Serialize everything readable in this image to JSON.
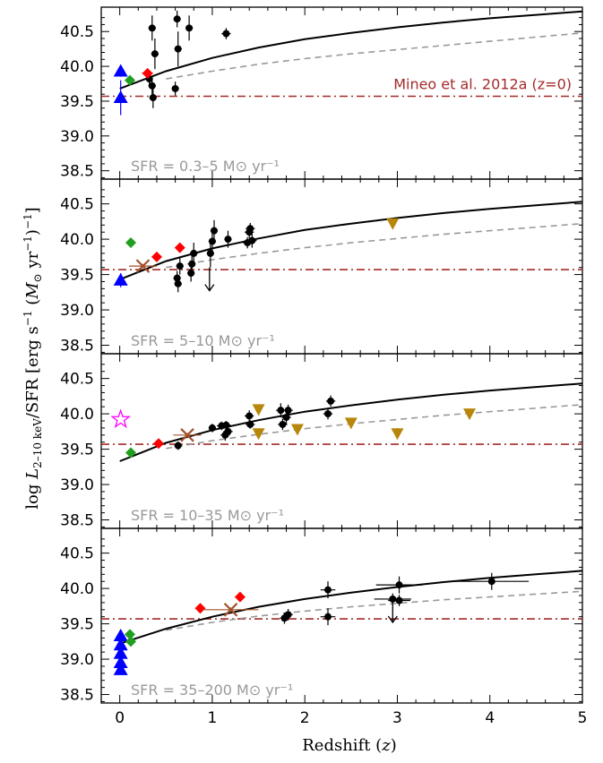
{
  "chart_data": {
    "type": "scatter",
    "xlabel": "Redshift (z)",
    "ylabel": "log L2–10 keV/SFR [erg s⁻¹ (M⊙ yr⁻¹)⁻¹]",
    "xlim": [
      -0.2,
      5
    ],
    "ylim": [
      38.38,
      40.85
    ],
    "x_ticks": [
      "0",
      "1",
      "2",
      "3",
      "4",
      "5"
    ],
    "y_ticks": [
      "38.5",
      "39.0",
      "39.5",
      "40.0",
      "40.5"
    ],
    "reference_label": "Mineo et al. 2012a (z=0)",
    "reference_value": 39.57,
    "colors": {
      "reference": "#a52a2a",
      "model_solid": "#000000",
      "model_dashed": "#999999",
      "local_triangle": "#0000ff",
      "diamond_green": "#1f9e1f",
      "diamond_red": "#ff0000",
      "stack_x": "#a0522d",
      "gold_triangle": "#b8860b",
      "star": "#ff00ff",
      "panel_label": "#999999"
    },
    "panels": [
      {
        "label": "SFR = 0.3–5 M⊙ yr⁻¹",
        "solid_curve": [
          [
            0,
            39.68
          ],
          [
            0.5,
            39.93
          ],
          [
            1,
            40.12
          ],
          [
            1.5,
            40.27
          ],
          [
            2,
            40.39
          ],
          [
            2.5,
            40.48
          ],
          [
            3,
            40.56
          ],
          [
            3.5,
            40.63
          ],
          [
            4,
            40.69
          ],
          [
            4.5,
            40.74
          ],
          [
            5,
            40.79
          ]
        ],
        "dashed_curve": [
          [
            0.5,
            39.82
          ],
          [
            1,
            39.93
          ],
          [
            1.5,
            40.03
          ],
          [
            2,
            40.11
          ],
          [
            2.5,
            40.18
          ],
          [
            3,
            40.24
          ],
          [
            3.5,
            40.3
          ],
          [
            4,
            40.36
          ],
          [
            4.5,
            40.42
          ],
          [
            5,
            40.48
          ]
        ],
        "points": [
          {
            "kind": "circle",
            "x": 0.35,
            "y": 40.55,
            "xerr": 0.04,
            "yerr": 0.18
          },
          {
            "kind": "circle",
            "x": 0.38,
            "y": 40.18,
            "xerr": 0.04,
            "yerr": 0.22
          },
          {
            "kind": "circle",
            "x": 0.35,
            "y": 39.72,
            "xerr": 0.04,
            "yerr": 0.12
          },
          {
            "kind": "circle",
            "x": 0.36,
            "y": 39.55,
            "xerr": 0.04,
            "yerr": 0.15
          },
          {
            "kind": "circle",
            "x": 0.32,
            "y": 39.82,
            "xerr": 0.03,
            "yerr": 0.12
          },
          {
            "kind": "circle",
            "x": 0.62,
            "y": 40.68,
            "xerr": 0.04,
            "yerr": 0.12
          },
          {
            "kind": "circle",
            "x": 0.63,
            "y": 40.25,
            "xerr": 0.04,
            "yerr": 0.25
          },
          {
            "kind": "circle",
            "x": 0.6,
            "y": 39.68,
            "xerr": 0.04,
            "yerr": 0.1
          },
          {
            "kind": "circle",
            "x": 0.75,
            "y": 40.55,
            "xerr": 0.04,
            "yerr": 0.18
          },
          {
            "kind": "circle",
            "x": 1.15,
            "y": 40.47,
            "xerr": 0.05,
            "yerr": 0.08
          },
          {
            "kind": "triangle-up",
            "x": 0.01,
            "y": 39.93,
            "xerr": 0,
            "yerr": 0.08
          },
          {
            "kind": "triangle-up",
            "x": 0.01,
            "y": 39.55,
            "xerr": 0,
            "yerr": 0.25
          },
          {
            "kind": "diamond-green",
            "x": 0.11,
            "y": 39.8,
            "xerr": 0,
            "yerr": 0
          },
          {
            "kind": "diamond-red",
            "x": 0.3,
            "y": 39.9,
            "xerr": 0.06,
            "yerr": 0.05
          }
        ]
      },
      {
        "label": "SFR = 5–10 M⊙ yr⁻¹",
        "solid_curve": [
          [
            0,
            39.43
          ],
          [
            0.5,
            39.69
          ],
          [
            1,
            39.87
          ],
          [
            1.5,
            40.01
          ],
          [
            2,
            40.13
          ],
          [
            2.5,
            40.22
          ],
          [
            3,
            40.3
          ],
          [
            3.5,
            40.37
          ],
          [
            4,
            40.43
          ],
          [
            4.5,
            40.48
          ],
          [
            5,
            40.53
          ]
        ],
        "dashed_curve": [
          [
            0.5,
            39.6
          ],
          [
            1,
            39.71
          ],
          [
            1.5,
            39.8
          ],
          [
            2,
            39.88
          ],
          [
            2.5,
            39.95
          ],
          [
            3,
            40.01
          ],
          [
            3.5,
            40.07
          ],
          [
            4,
            40.12
          ],
          [
            4.5,
            40.17
          ],
          [
            5,
            40.22
          ]
        ],
        "points": [
          {
            "kind": "circle",
            "x": 0.62,
            "y": 39.45,
            "xerr": 0.04,
            "yerr": 0.1
          },
          {
            "kind": "circle",
            "x": 0.63,
            "y": 39.37,
            "xerr": 0.04,
            "yerr": 0.12
          },
          {
            "kind": "circle",
            "x": 0.65,
            "y": 39.62,
            "xerr": 0.04,
            "yerr": 0.12
          },
          {
            "kind": "circle",
            "x": 0.77,
            "y": 39.52,
            "xerr": 0.04,
            "yerr": 0.12
          },
          {
            "kind": "circle",
            "x": 0.78,
            "y": 39.65,
            "xerr": 0.04,
            "yerr": 0.12
          },
          {
            "kind": "circle",
            "x": 0.8,
            "y": 39.8,
            "xerr": 0.04,
            "yerr": 0.15
          },
          {
            "kind": "circle",
            "x": 0.98,
            "y": 39.8,
            "xerr": 0.04,
            "yerr": 0.2
          },
          {
            "kind": "circle",
            "x": 1.0,
            "y": 39.97,
            "xerr": 0.04,
            "yerr": 0.18
          },
          {
            "kind": "circle",
            "x": 1.02,
            "y": 40.12,
            "xerr": 0.04,
            "yerr": 0.15
          },
          {
            "kind": "circle",
            "x": 1.17,
            "y": 40.0,
            "xerr": 0.04,
            "yerr": 0.12
          },
          {
            "kind": "circle",
            "x": 1.38,
            "y": 39.95,
            "xerr": 0.05,
            "yerr": 0.08
          },
          {
            "kind": "circle",
            "x": 1.4,
            "y": 40.1,
            "xerr": 0.05,
            "yerr": 0.1
          },
          {
            "kind": "circle",
            "x": 1.41,
            "y": 40.15,
            "xerr": 0.05,
            "yerr": 0.08
          },
          {
            "kind": "circle",
            "x": 1.43,
            "y": 39.98,
            "xerr": 0.05,
            "yerr": 0.1
          },
          {
            "kind": "upper-limit",
            "x": 0.97,
            "y": 39.6,
            "xerr": 0,
            "yerr": 0
          },
          {
            "kind": "triangle-up",
            "x": 0.01,
            "y": 39.42,
            "xerr": 0,
            "yerr": 0.1
          },
          {
            "kind": "diamond-green",
            "x": 0.12,
            "y": 39.95,
            "xerr": 0,
            "yerr": 0
          },
          {
            "kind": "diamond-red",
            "x": 0.4,
            "y": 39.75,
            "xerr": 0.05,
            "yerr": 0.05
          },
          {
            "kind": "diamond-red",
            "x": 0.65,
            "y": 39.88,
            "xerr": 0.05,
            "yerr": 0.05
          },
          {
            "kind": "stack-x",
            "x": 0.25,
            "y": 39.62,
            "xerr": 0.15,
            "yerr": 0.03
          },
          {
            "kind": "triangle-down",
            "x": 2.95,
            "y": 40.22,
            "xerr": 0,
            "yerr": 0.07
          }
        ]
      },
      {
        "label": "SFR = 10–35 M⊙ yr⁻¹",
        "solid_curve": [
          [
            0,
            39.33
          ],
          [
            0.5,
            39.59
          ],
          [
            1,
            39.77
          ],
          [
            1.5,
            39.91
          ],
          [
            2,
            40.03
          ],
          [
            2.5,
            40.12
          ],
          [
            3,
            40.2
          ],
          [
            3.5,
            40.27
          ],
          [
            4,
            40.33
          ],
          [
            4.5,
            40.38
          ],
          [
            5,
            40.43
          ]
        ],
        "dashed_curve": [
          [
            0.5,
            39.51
          ],
          [
            1,
            39.62
          ],
          [
            1.5,
            39.71
          ],
          [
            2,
            39.79
          ],
          [
            2.5,
            39.86
          ],
          [
            3,
            39.92
          ],
          [
            3.5,
            39.98
          ],
          [
            4,
            40.03
          ],
          [
            4.5,
            40.08
          ],
          [
            5,
            40.13
          ]
        ],
        "points": [
          {
            "kind": "circle",
            "x": 0.63,
            "y": 39.55,
            "xerr": 0.04,
            "yerr": 0.06
          },
          {
            "kind": "circle",
            "x": 1.0,
            "y": 39.8,
            "xerr": 0.04,
            "yerr": 0.06
          },
          {
            "kind": "circle",
            "x": 1.1,
            "y": 39.83,
            "xerr": 0.05,
            "yerr": 0.06
          },
          {
            "kind": "circle",
            "x": 1.14,
            "y": 39.7,
            "xerr": 0.05,
            "yerr": 0.08
          },
          {
            "kind": "circle",
            "x": 1.15,
            "y": 39.84,
            "xerr": 0.05,
            "yerr": 0.06
          },
          {
            "kind": "circle",
            "x": 1.17,
            "y": 39.75,
            "xerr": 0.05,
            "yerr": 0.07
          },
          {
            "kind": "circle",
            "x": 1.4,
            "y": 39.97,
            "xerr": 0.05,
            "yerr": 0.08
          },
          {
            "kind": "circle",
            "x": 1.41,
            "y": 39.85,
            "xerr": 0.05,
            "yerr": 0.06
          },
          {
            "kind": "circle",
            "x": 1.74,
            "y": 40.05,
            "xerr": 0.05,
            "yerr": 0.1
          },
          {
            "kind": "circle",
            "x": 1.76,
            "y": 39.85,
            "xerr": 0.05,
            "yerr": 0.08
          },
          {
            "kind": "circle",
            "x": 1.8,
            "y": 39.95,
            "xerr": 0.05,
            "yerr": 0.1
          },
          {
            "kind": "circle",
            "x": 1.82,
            "y": 40.05,
            "xerr": 0.05,
            "yerr": 0.08
          },
          {
            "kind": "circle",
            "x": 2.25,
            "y": 40.0,
            "xerr": 0.05,
            "yerr": 0.08
          },
          {
            "kind": "circle",
            "x": 2.28,
            "y": 40.18,
            "xerr": 0.05,
            "yerr": 0.08
          },
          {
            "kind": "star",
            "x": 0.01,
            "y": 39.92,
            "xerr": 0,
            "yerr": 0
          },
          {
            "kind": "diamond-green",
            "x": 0.12,
            "y": 39.45,
            "xerr": 0,
            "yerr": 0
          },
          {
            "kind": "diamond-red",
            "x": 0.42,
            "y": 39.58,
            "xerr": 0.04,
            "yerr": 0.03
          },
          {
            "kind": "stack-x",
            "x": 0.73,
            "y": 39.7,
            "xerr": 0.15,
            "yerr": 0.03
          },
          {
            "kind": "triangle-down",
            "x": 1.5,
            "y": 40.06,
            "xerr": 0,
            "yerr": 0.07
          },
          {
            "kind": "triangle-down",
            "x": 1.5,
            "y": 39.72,
            "xerr": 0,
            "yerr": 0.07
          },
          {
            "kind": "triangle-down",
            "x": 1.92,
            "y": 39.78,
            "xerr": 0,
            "yerr": 0.07
          },
          {
            "kind": "triangle-down",
            "x": 2.5,
            "y": 39.87,
            "xerr": 0,
            "yerr": 0.07
          },
          {
            "kind": "triangle-down",
            "x": 3.0,
            "y": 39.72,
            "xerr": 0,
            "yerr": 0.08
          },
          {
            "kind": "triangle-down",
            "x": 3.78,
            "y": 40.0,
            "xerr": 0,
            "yerr": 0.07
          }
        ]
      },
      {
        "label": "SFR = 35–200 M⊙ yr⁻¹",
        "solid_curve": [
          [
            0,
            39.22
          ],
          [
            0.5,
            39.43
          ],
          [
            1,
            39.6
          ],
          [
            1.5,
            39.74
          ],
          [
            2,
            39.85
          ],
          [
            2.5,
            39.94
          ],
          [
            3,
            40.02
          ],
          [
            3.5,
            40.09
          ],
          [
            4,
            40.15
          ],
          [
            4.5,
            40.2
          ],
          [
            5,
            40.25
          ]
        ],
        "dashed_curve": [
          [
            0.5,
            39.41
          ],
          [
            1,
            39.52
          ],
          [
            1.5,
            39.61
          ],
          [
            2,
            39.68
          ],
          [
            2.5,
            39.74
          ],
          [
            3,
            39.79
          ],
          [
            3.5,
            39.84
          ],
          [
            4,
            39.88
          ],
          [
            4.5,
            39.92
          ],
          [
            5,
            39.96
          ]
        ],
        "points": [
          {
            "kind": "circle",
            "x": 1.78,
            "y": 39.58,
            "xerr": 0.05,
            "yerr": 0.08
          },
          {
            "kind": "circle",
            "x": 1.82,
            "y": 39.63,
            "xerr": 0.05,
            "yerr": 0.08
          },
          {
            "kind": "circle",
            "x": 2.25,
            "y": 39.98,
            "xerr": 0.08,
            "yerr": 0.12
          },
          {
            "kind": "circle",
            "x": 2.25,
            "y": 39.6,
            "xerr": 0.08,
            "yerr": 0.12
          },
          {
            "kind": "circle",
            "x": 2.95,
            "y": 39.85,
            "xerr": 0.2,
            "yerr": 0.08
          },
          {
            "kind": "circle",
            "x": 3.02,
            "y": 40.05,
            "xerr": 0.25,
            "yerr": 0.12
          },
          {
            "kind": "circle",
            "x": 3.02,
            "y": 39.83,
            "xerr": 0.12,
            "yerr": 0.08
          },
          {
            "kind": "circle",
            "x": 4.02,
            "y": 40.1,
            "xerr": 0.4,
            "yerr": 0.12
          },
          {
            "kind": "upper-limit",
            "x": 2.95,
            "y": 39.85,
            "xerr": 0,
            "yerr": 0
          },
          {
            "kind": "triangle-up",
            "x": 0.01,
            "y": 39.33,
            "xerr": 0,
            "yerr": 0
          },
          {
            "kind": "triangle-up",
            "x": 0.01,
            "y": 39.2,
            "xerr": 0,
            "yerr": 0
          },
          {
            "kind": "triangle-up",
            "x": 0.01,
            "y": 39.08,
            "xerr": 0,
            "yerr": 0
          },
          {
            "kind": "triangle-up",
            "x": 0.01,
            "y": 38.95,
            "xerr": 0,
            "yerr": 0
          },
          {
            "kind": "triangle-up",
            "x": 0.01,
            "y": 38.85,
            "xerr": 0,
            "yerr": 0
          },
          {
            "kind": "diamond-green",
            "x": 0.11,
            "y": 39.35,
            "xerr": 0,
            "yerr": 0
          },
          {
            "kind": "diamond-green",
            "x": 0.12,
            "y": 39.25,
            "xerr": 0,
            "yerr": 0
          },
          {
            "kind": "diamond-red",
            "x": 0.87,
            "y": 39.72,
            "xerr": 0.04,
            "yerr": 0.03
          },
          {
            "kind": "diamond-red",
            "x": 1.3,
            "y": 39.88,
            "xerr": 0.05,
            "yerr": 0.03
          },
          {
            "kind": "stack-x",
            "x": 1.2,
            "y": 39.7,
            "xerr": 0.3,
            "yerr": 0.03
          }
        ]
      }
    ]
  }
}
